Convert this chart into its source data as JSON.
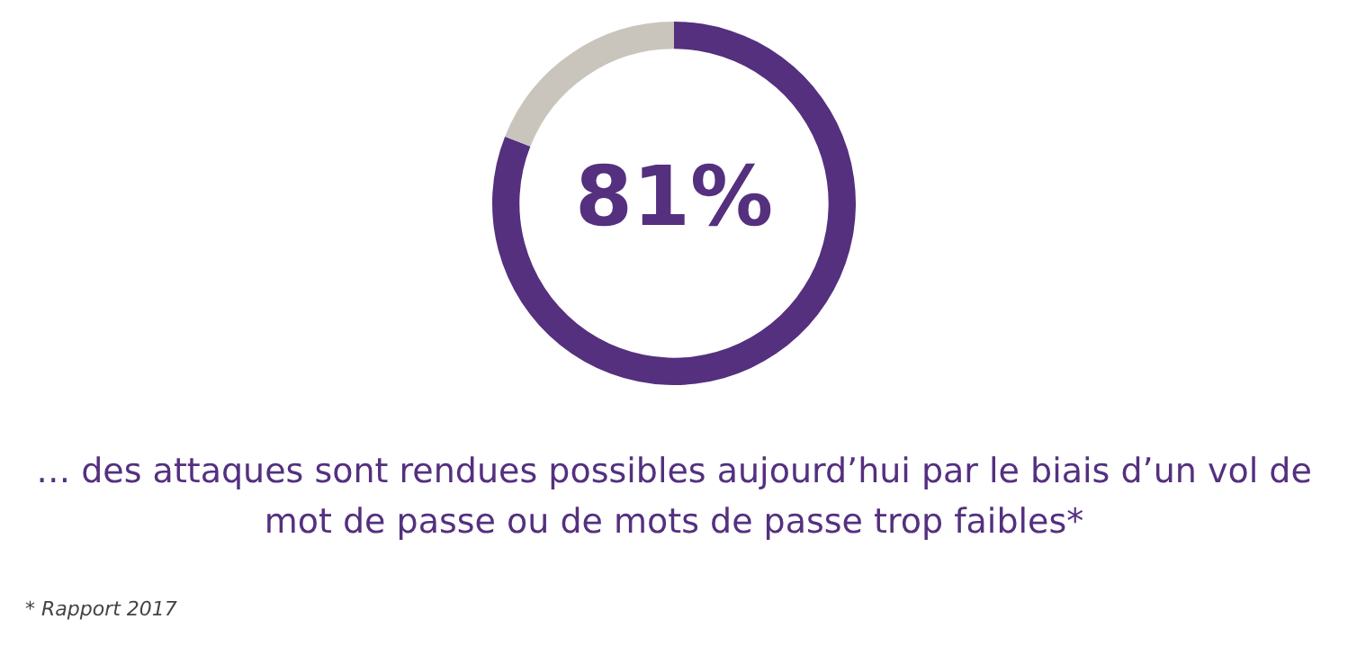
{
  "chart_data": {
    "type": "donut",
    "categories": [
      null,
      null
    ],
    "values": [
      81,
      19
    ],
    "colors": [
      "#54307f",
      "#c9c5bc"
    ],
    "value_labels": [
      "81%",
      null
    ],
    "legend": false,
    "annotations": [
      "… des attaques sont rendues possibles aujourd’hui par le biais d’un vol de mot de passe ou de mots de passe trop faibles*",
      "* Rapport 2017"
    ]
  }
}
